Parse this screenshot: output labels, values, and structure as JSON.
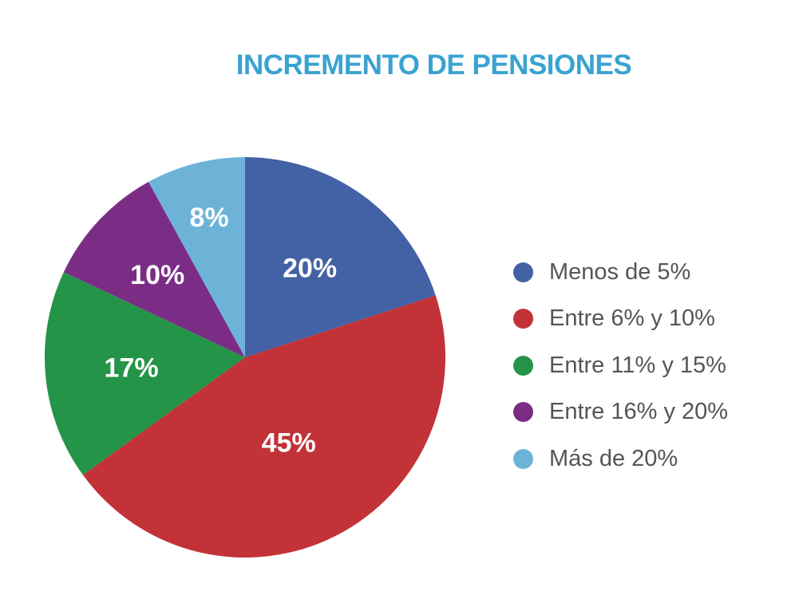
{
  "chart_data": {
    "type": "pie",
    "title": "INCREMENTO DE PENSIONES",
    "slices": [
      {
        "name": "Menos de 5%",
        "value": 20,
        "label": "20%",
        "color": "#4362a5"
      },
      {
        "name": "Entre 6% y 10%",
        "value": 45,
        "label": "45%",
        "color": "#c23237"
      },
      {
        "name": "Entre 11% y 15%",
        "value": 17,
        "label": "17%",
        "color": "#249448"
      },
      {
        "name": "Entre 16% y 20%",
        "value": 10,
        "label": "10%",
        "color": "#7b2d86"
      },
      {
        "name": "Más de 20%",
        "value": 8,
        "label": "8%",
        "color": "#6db3d8"
      }
    ],
    "legend_position": "right"
  }
}
